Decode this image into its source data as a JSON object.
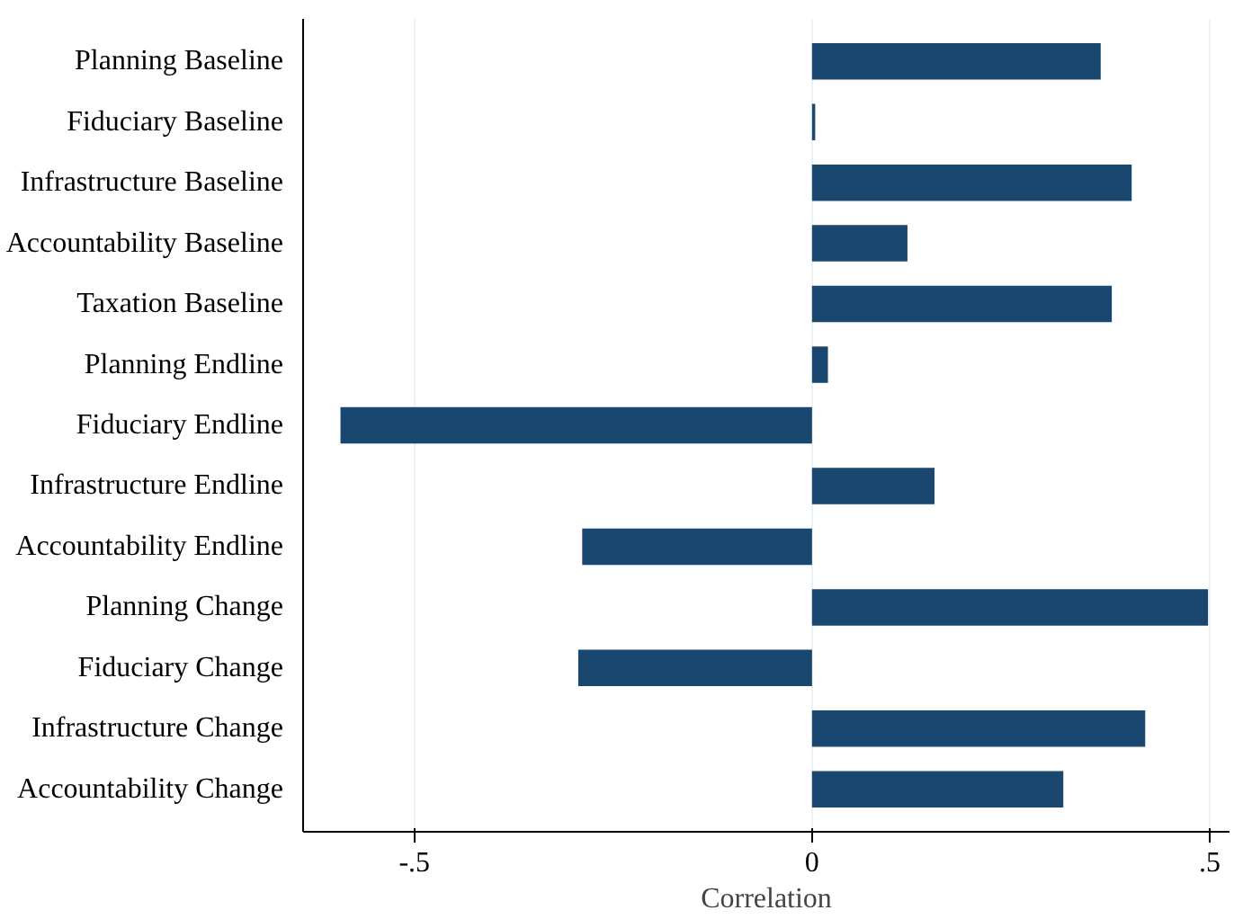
{
  "chart_data": {
    "type": "bar",
    "orientation": "horizontal",
    "xlabel": "Correlation",
    "categories": [
      "Planning Baseline",
      "Fiduciary Baseline",
      "Infrastructure Baseline",
      "Accountability Baseline",
      "Taxation Baseline",
      "Planning Endline",
      "Fiduciary Endline",
      "Infrastructure Endline",
      "Accountability Endline",
      "Planning Change",
      "Fiduciary Change",
      "Infrastructure Change",
      "Accountability Change"
    ],
    "values": [
      0.363,
      0.004,
      0.402,
      0.12,
      0.377,
      0.02,
      -0.593,
      0.154,
      -0.289,
      0.498,
      -0.294,
      0.419,
      0.316
    ],
    "color": "#1a476f",
    "xlim": [
      -0.64,
      0.525
    ],
    "xticks": [
      {
        "value": -0.5,
        "label": "-.5"
      },
      {
        "value": 0,
        "label": "0"
      },
      {
        "value": 0.5,
        "label": ".5"
      }
    ],
    "grid": "x"
  }
}
